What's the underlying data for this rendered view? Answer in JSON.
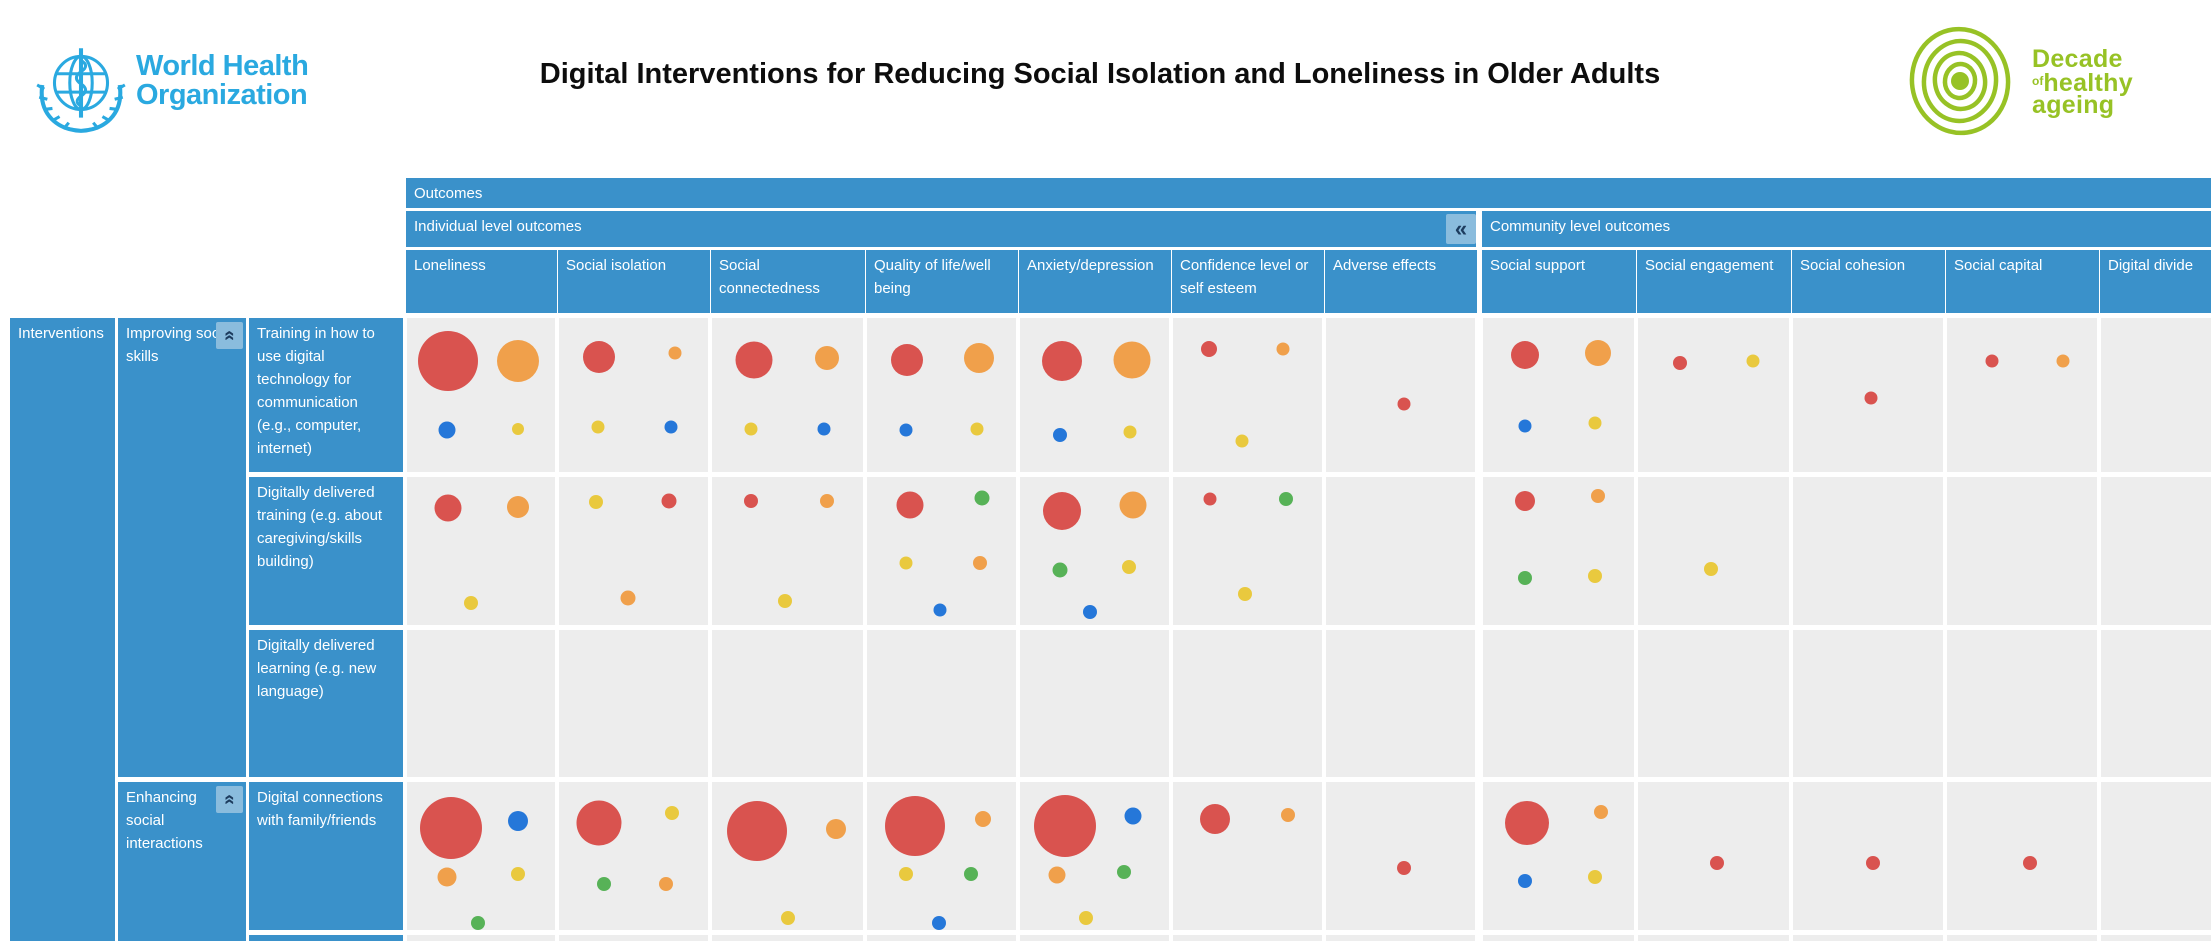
{
  "header": {
    "who_name_line1": "World Health",
    "who_name_line2": "Organization",
    "title": "Digital Interventions for Reducing Social Isolation and Loneliness in Older Adults",
    "decade_line1": "Decade",
    "decade_of": "of",
    "decade_line2": "healthy",
    "decade_line3": "ageing"
  },
  "colors": {
    "header_blue": "#3a91ca",
    "button_blue": "#8abcdd",
    "button_glyph": "#1d3c5e",
    "cell_bg": "#ededed",
    "who_blue": "#2aa9e0",
    "decade_green": "#97c225",
    "red": "#d9534f",
    "orange": "#f0a04b",
    "yellow": "#e9c93e",
    "blue": "#2577d9",
    "green": "#57b257"
  },
  "table": {
    "outcomes_band": "Outcomes",
    "individual_band": "Individual level outcomes",
    "community_band": "Community level outcomes",
    "collapse_glyph": "«",
    "interventions_label": "Interventions",
    "groups": [
      {
        "label": "Improving social skills"
      },
      {
        "label": "Enhancing social interactions"
      }
    ]
  },
  "chart_data": {
    "type": "bubble-matrix",
    "title": "Digital Interventions for Reducing Social Isolation and Loneliness in Older Adults",
    "column_groups": [
      {
        "label": "Individual level outcomes",
        "columns": [
          "Loneliness",
          "Social isolation",
          "Social connectedness",
          "Quality of life/well being",
          "Anxiety/depression",
          "Confidence level or self esteem",
          "Adverse effects"
        ]
      },
      {
        "label": "Community level outcomes",
        "columns": [
          "Social support",
          "Social engagement",
          "Social cohesion",
          "Social capital",
          "Digital divide"
        ]
      }
    ],
    "columns": [
      "Loneliness",
      "Social isolation",
      "Social connectedness",
      "Quality of life/well being",
      "Anxiety/depression",
      "Confidence level or self esteem",
      "Adverse effects",
      "Social support",
      "Social engagement",
      "Social cohesion",
      "Social capital",
      "Digital divide"
    ],
    "rows": [
      "Training in how to use digital technology for communication (e.g., computer, internet)",
      "Digitally delivered training (e.g. about caregiving/skills building)",
      "Digitally delivered learning (e.g. new language)",
      "Digital connections with family/friends"
    ],
    "row_groups": [
      {
        "label": "Improving social skills",
        "rows": [
          0,
          1,
          2
        ]
      },
      {
        "label": "Enhancing social interactions",
        "rows": [
          3
        ]
      }
    ],
    "bubble_note": "dots = [color, diameter_px, x_percent_in_cell, y_percent_in_cell]",
    "bubbles": [
      {
        "row": 0,
        "col": 0,
        "dots": [
          [
            "red",
            60,
            28,
            28
          ],
          [
            "orange",
            42,
            75,
            28
          ],
          [
            "blue",
            17,
            27,
            73
          ],
          [
            "yellow",
            12,
            75,
            72
          ]
        ]
      },
      {
        "row": 0,
        "col": 1,
        "dots": [
          [
            "red",
            32,
            27,
            25
          ],
          [
            "orange",
            13,
            78,
            23
          ],
          [
            "yellow",
            13,
            26,
            71
          ],
          [
            "blue",
            13,
            75,
            71
          ]
        ]
      },
      {
        "row": 0,
        "col": 2,
        "dots": [
          [
            "red",
            37,
            28,
            27
          ],
          [
            "orange",
            24,
            76,
            26
          ],
          [
            "yellow",
            13,
            26,
            72
          ],
          [
            "blue",
            13,
            74,
            72
          ]
        ]
      },
      {
        "row": 0,
        "col": 3,
        "dots": [
          [
            "red",
            32,
            27,
            27
          ],
          [
            "orange",
            30,
            75,
            26
          ],
          [
            "blue",
            13,
            26,
            73
          ],
          [
            "yellow",
            13,
            74,
            72
          ]
        ]
      },
      {
        "row": 0,
        "col": 4,
        "dots": [
          [
            "red",
            40,
            28,
            28
          ],
          [
            "orange",
            37,
            75,
            27
          ],
          [
            "blue",
            14,
            27,
            76
          ],
          [
            "yellow",
            13,
            74,
            74
          ]
        ]
      },
      {
        "row": 0,
        "col": 5,
        "dots": [
          [
            "red",
            16,
            24,
            20
          ],
          [
            "orange",
            13,
            74,
            20
          ],
          [
            "yellow",
            13,
            46,
            80
          ]
        ]
      },
      {
        "row": 0,
        "col": 6,
        "dots": [
          [
            "red",
            13,
            52,
            56
          ]
        ]
      },
      {
        "row": 0,
        "col": 7,
        "dots": [
          [
            "red",
            28,
            28,
            24
          ],
          [
            "orange",
            26,
            76,
            23
          ],
          [
            "blue",
            13,
            28,
            70
          ],
          [
            "yellow",
            13,
            74,
            68
          ]
        ]
      },
      {
        "row": 0,
        "col": 8,
        "dots": [
          [
            "red",
            14,
            28,
            29
          ],
          [
            "yellow",
            13,
            76,
            28
          ]
        ]
      },
      {
        "row": 0,
        "col": 9,
        "dots": [
          [
            "red",
            13,
            52,
            52
          ]
        ]
      },
      {
        "row": 0,
        "col": 10,
        "dots": [
          [
            "red",
            13,
            30,
            28
          ],
          [
            "orange",
            13,
            77,
            28
          ]
        ]
      },
      {
        "row": 1,
        "col": 0,
        "dots": [
          [
            "red",
            27,
            28,
            21
          ],
          [
            "orange",
            22,
            75,
            20
          ],
          [
            "yellow",
            14,
            43,
            85
          ]
        ]
      },
      {
        "row": 1,
        "col": 1,
        "dots": [
          [
            "yellow",
            14,
            25,
            17
          ],
          [
            "red",
            15,
            74,
            16
          ],
          [
            "orange",
            15,
            46,
            82
          ]
        ]
      },
      {
        "row": 1,
        "col": 2,
        "dots": [
          [
            "red",
            14,
            26,
            16
          ],
          [
            "orange",
            14,
            76,
            16
          ],
          [
            "yellow",
            14,
            48,
            84
          ]
        ]
      },
      {
        "row": 1,
        "col": 3,
        "dots": [
          [
            "red",
            27,
            29,
            19
          ],
          [
            "green",
            15,
            77,
            14
          ],
          [
            "yellow",
            13,
            26,
            58
          ],
          [
            "orange",
            14,
            76,
            58
          ],
          [
            "blue",
            13,
            49,
            90
          ]
        ]
      },
      {
        "row": 1,
        "col": 4,
        "dots": [
          [
            "red",
            38,
            28,
            23
          ],
          [
            "orange",
            27,
            76,
            19
          ],
          [
            "green",
            15,
            27,
            63
          ],
          [
            "yellow",
            14,
            73,
            61
          ],
          [
            "blue",
            14,
            47,
            91
          ]
        ]
      },
      {
        "row": 1,
        "col": 5,
        "dots": [
          [
            "red",
            13,
            25,
            15
          ],
          [
            "green",
            14,
            76,
            15
          ],
          [
            "yellow",
            14,
            48,
            79
          ]
        ]
      },
      {
        "row": 1,
        "col": 7,
        "dots": [
          [
            "red",
            20,
            28,
            16
          ],
          [
            "orange",
            14,
            76,
            13
          ],
          [
            "green",
            14,
            28,
            68
          ],
          [
            "yellow",
            14,
            74,
            67
          ]
        ]
      },
      {
        "row": 1,
        "col": 8,
        "dots": [
          [
            "yellow",
            14,
            48,
            62
          ]
        ]
      },
      {
        "row": 3,
        "col": 0,
        "dots": [
          [
            "red",
            62,
            30,
            31
          ],
          [
            "blue",
            20,
            75,
            26
          ],
          [
            "orange",
            19,
            27,
            64
          ],
          [
            "yellow",
            14,
            75,
            62
          ],
          [
            "green",
            14,
            48,
            95
          ]
        ]
      },
      {
        "row": 3,
        "col": 1,
        "dots": [
          [
            "red",
            45,
            27,
            28
          ],
          [
            "yellow",
            14,
            76,
            21
          ],
          [
            "green",
            14,
            30,
            69
          ],
          [
            "orange",
            14,
            72,
            69
          ]
        ]
      },
      {
        "row": 3,
        "col": 2,
        "dots": [
          [
            "red",
            60,
            30,
            33
          ],
          [
            "orange",
            20,
            82,
            32
          ],
          [
            "yellow",
            14,
            50,
            92
          ]
        ]
      },
      {
        "row": 3,
        "col": 3,
        "dots": [
          [
            "red",
            60,
            32,
            30
          ],
          [
            "orange",
            16,
            78,
            25
          ],
          [
            "yellow",
            14,
            26,
            62
          ],
          [
            "green",
            14,
            70,
            62
          ],
          [
            "blue",
            14,
            48,
            95
          ]
        ]
      },
      {
        "row": 3,
        "col": 4,
        "dots": [
          [
            "red",
            62,
            30,
            30
          ],
          [
            "blue",
            17,
            76,
            23
          ],
          [
            "orange",
            17,
            25,
            63
          ],
          [
            "green",
            14,
            70,
            61
          ],
          [
            "yellow",
            14,
            44,
            92
          ]
        ]
      },
      {
        "row": 3,
        "col": 5,
        "dots": [
          [
            "red",
            30,
            28,
            25
          ],
          [
            "orange",
            14,
            77,
            22
          ]
        ]
      },
      {
        "row": 3,
        "col": 6,
        "dots": [
          [
            "red",
            14,
            52,
            58
          ]
        ]
      },
      {
        "row": 3,
        "col": 7,
        "dots": [
          [
            "red",
            44,
            29,
            28
          ],
          [
            "orange",
            14,
            78,
            20
          ],
          [
            "blue",
            14,
            28,
            67
          ],
          [
            "yellow",
            14,
            74,
            64
          ]
        ]
      },
      {
        "row": 3,
        "col": 8,
        "dots": [
          [
            "red",
            14,
            52,
            55
          ]
        ]
      },
      {
        "row": 3,
        "col": 9,
        "dots": [
          [
            "red",
            14,
            53,
            55
          ]
        ]
      },
      {
        "row": 3,
        "col": 10,
        "dots": [
          [
            "red",
            14,
            55,
            55
          ]
        ]
      }
    ]
  }
}
